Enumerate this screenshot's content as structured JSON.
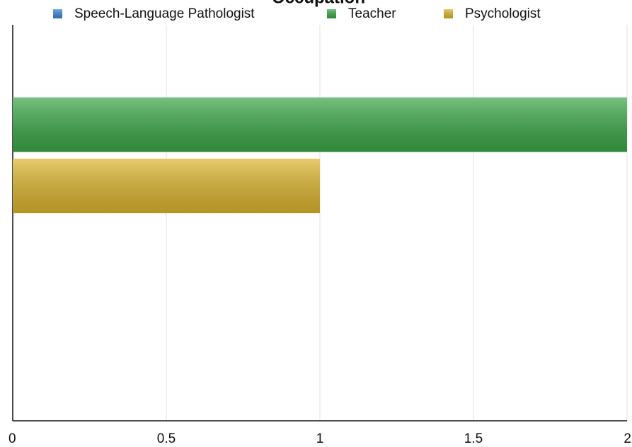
{
  "chart_data": {
    "type": "bar",
    "orientation": "horizontal",
    "title": "Occupation",
    "categories": [
      null
    ],
    "series": [
      {
        "name": "Speech-Language Pathologist",
        "color": "#3a86d8",
        "values": [
          0
        ]
      },
      {
        "name": "Teacher",
        "color": "#3aa646",
        "values": [
          2
        ]
      },
      {
        "name": "Psychologist",
        "color": "#dcb52f",
        "values": [
          1
        ]
      }
    ],
    "xlim": [
      0,
      2
    ],
    "xticks": [
      0,
      0.5,
      1,
      1.5,
      2
    ],
    "grid": true,
    "legend": "top"
  }
}
